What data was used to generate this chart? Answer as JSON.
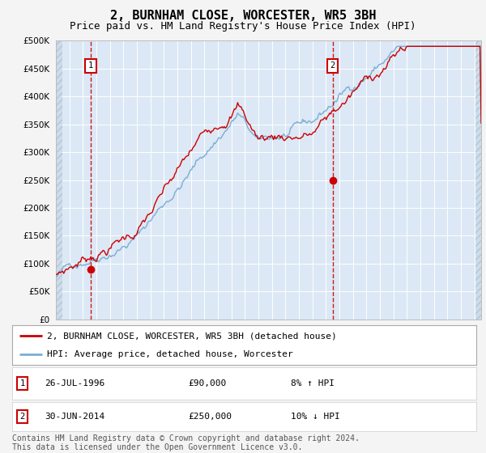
{
  "title": "2, BURNHAM CLOSE, WORCESTER, WR5 3BH",
  "subtitle": "Price paid vs. HM Land Registry's House Price Index (HPI)",
  "title_fontsize": 11,
  "subtitle_fontsize": 9,
  "ylim": [
    0,
    500000
  ],
  "yticks": [
    0,
    50000,
    100000,
    150000,
    200000,
    250000,
    300000,
    350000,
    400000,
    450000,
    500000
  ],
  "xlim_start": 1994.0,
  "xlim_end": 2025.5,
  "fig_bg": "#f4f4f4",
  "plot_bg": "#dce8f5",
  "sale1_x": 1996.57,
  "sale1_y": 90000,
  "sale2_x": 2014.5,
  "sale2_y": 250000,
  "sale_color": "#cc0000",
  "hpi_color": "#7aaed6",
  "legend_label1": "2, BURNHAM CLOSE, WORCESTER, WR5 3BH (detached house)",
  "legend_label2": "HPI: Average price, detached house, Worcester",
  "table_row1": [
    "1",
    "26-JUL-1996",
    "£90,000",
    "8% ↑ HPI"
  ],
  "table_row2": [
    "2",
    "30-JUN-2014",
    "£250,000",
    "10% ↓ HPI"
  ],
  "footer": "Contains HM Land Registry data © Crown copyright and database right 2024.\nThis data is licensed under the Open Government Licence v3.0.",
  "footer_fontsize": 7
}
